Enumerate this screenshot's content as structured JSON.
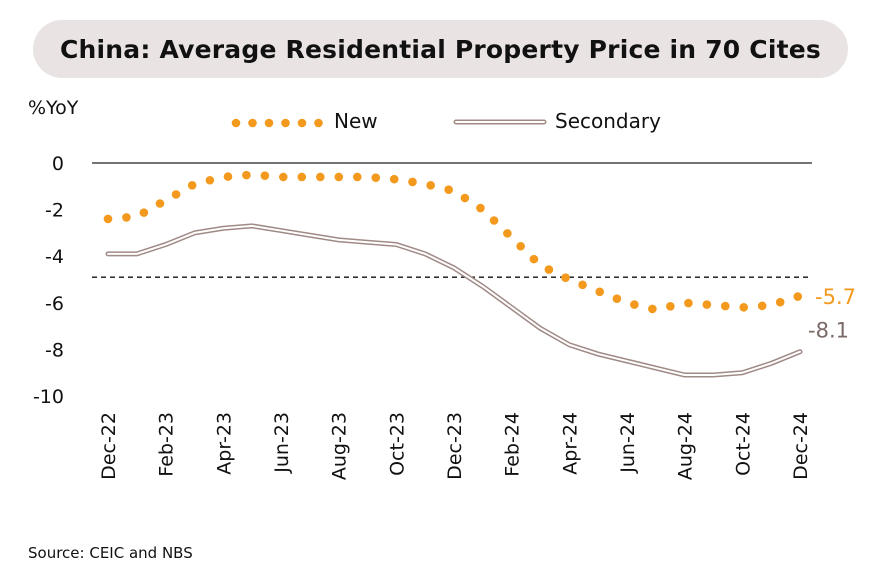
{
  "header": {
    "title": "China: Average Residential Property Price in 70 Cites"
  },
  "source": "Source: CEIC and NBS",
  "colors": {
    "new": "#f39a1e",
    "secondary_outer": "#a08a86",
    "secondary_inner": "#ffffff",
    "title_bg": "#e9e3e3"
  },
  "chart_data": {
    "type": "line",
    "ylabel": "%YoY",
    "ylim": [
      -10,
      0
    ],
    "yticks": [
      0,
      -2,
      -4,
      -6,
      -8,
      -10
    ],
    "x": [
      "Dec-22",
      "Jan-23",
      "Feb-23",
      "Mar-23",
      "Apr-23",
      "May-23",
      "Jun-23",
      "Jul-23",
      "Aug-23",
      "Sep-23",
      "Oct-23",
      "Nov-23",
      "Dec-23",
      "Jan-24",
      "Feb-24",
      "Mar-24",
      "Apr-24",
      "May-24",
      "Jun-24",
      "Jul-24",
      "Aug-24",
      "Sep-24",
      "Oct-24",
      "Nov-24",
      "Dec-24"
    ],
    "xtick_labels": [
      "Dec-22",
      "Feb-23",
      "Apr-23",
      "Jun-23",
      "Aug-23",
      "Oct-23",
      "Dec-23",
      "Feb-24",
      "Apr-24",
      "Jun-24",
      "Aug-24",
      "Oct-24",
      "Dec-24"
    ],
    "reference_line": {
      "y": -4.9,
      "style": "dashed"
    },
    "series": [
      {
        "name": "New",
        "style": "dotted",
        "values": [
          -2.4,
          -2.3,
          -1.6,
          -0.9,
          -0.6,
          -0.5,
          -0.6,
          -0.6,
          -0.6,
          -0.6,
          -0.7,
          -0.9,
          -1.2,
          -2.0,
          -3.2,
          -4.4,
          -5.0,
          -5.5,
          -6.0,
          -6.3,
          -6.0,
          -6.1,
          -6.2,
          -6.1,
          -5.7
        ],
        "end_label": "-5.7"
      },
      {
        "name": "Secondary",
        "style": "double",
        "values": [
          -3.9,
          -3.9,
          -3.5,
          -3.0,
          -2.8,
          -2.7,
          -2.9,
          -3.1,
          -3.3,
          -3.4,
          -3.5,
          -3.9,
          -4.5,
          -5.3,
          -6.2,
          -7.1,
          -7.8,
          -8.2,
          -8.5,
          -8.8,
          -9.1,
          -9.1,
          -9.0,
          -8.6,
          -8.1
        ],
        "end_label": "-8.1"
      }
    ],
    "legend_position": "top"
  }
}
